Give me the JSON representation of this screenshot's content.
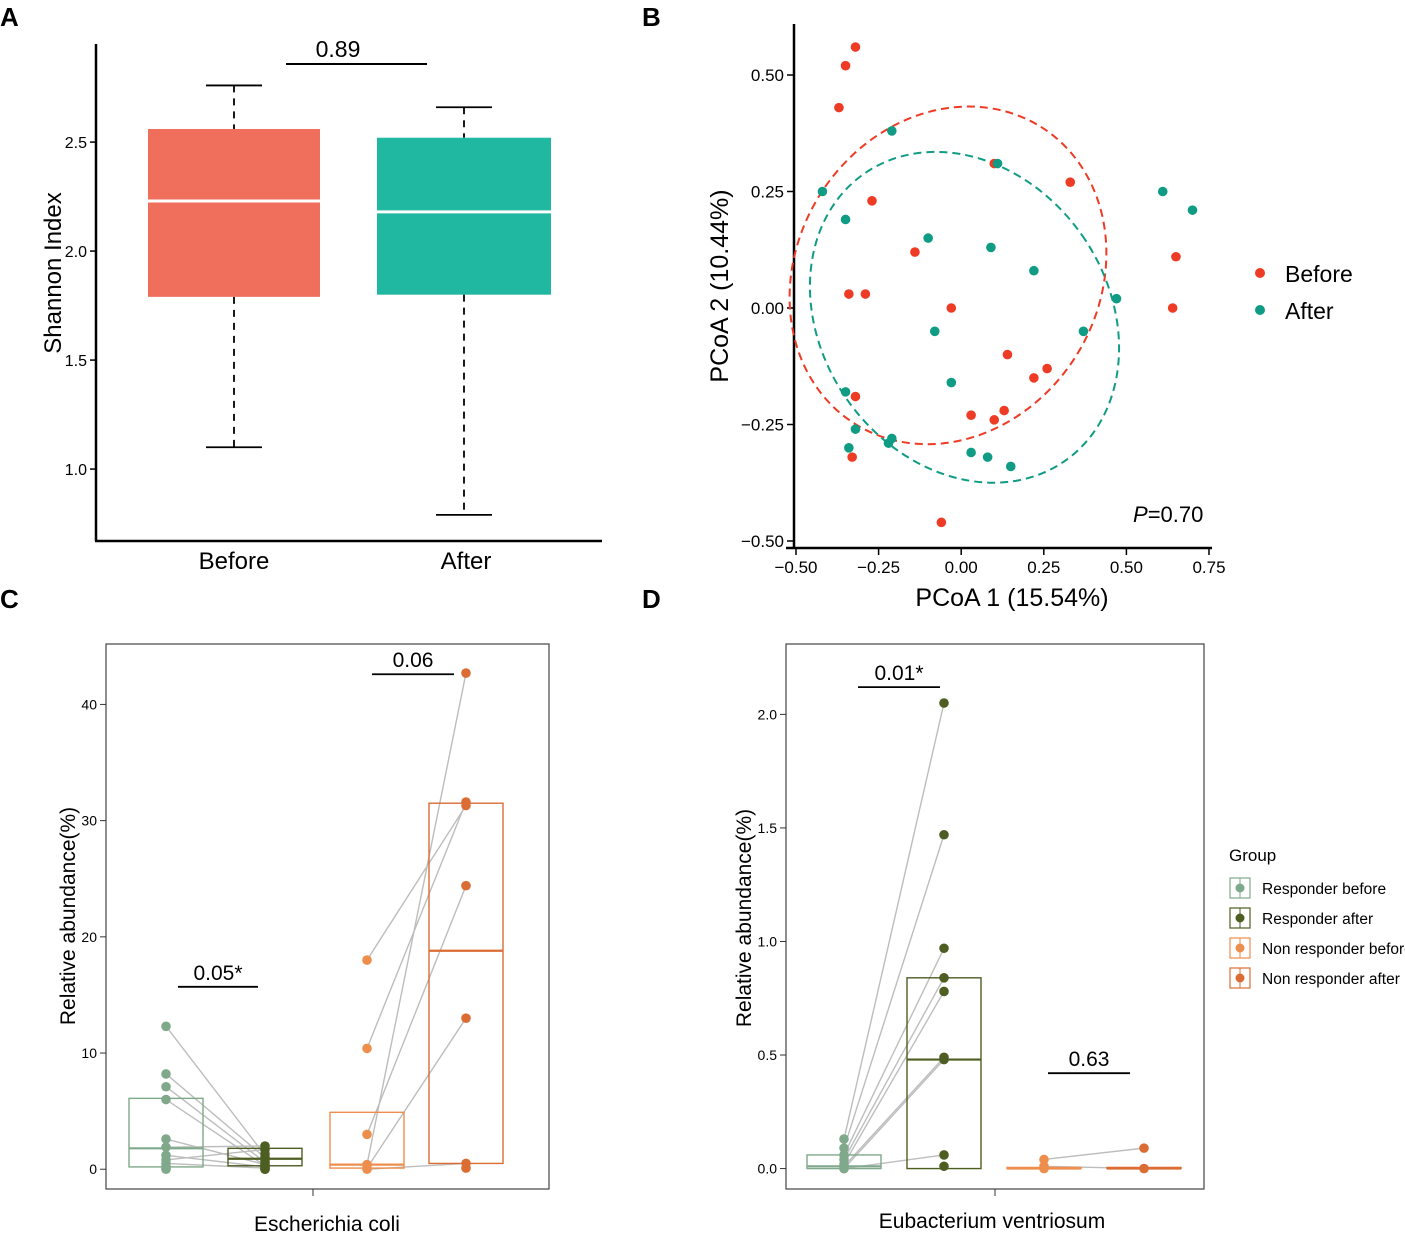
{
  "panel_labels": [
    "A",
    "B",
    "C",
    "D"
  ],
  "chart_data": [
    {
      "panel": "A",
      "type": "box",
      "title": "",
      "xlabel": "",
      "ylabel": "Shannon Index",
      "ylim": [
        0.67,
        2.95
      ],
      "yticks": [
        "1.0",
        "1.5",
        "2.0",
        "2.5"
      ],
      "ytick_values": [
        1.0,
        1.5,
        2.0,
        2.5
      ],
      "categories": [
        "Before",
        "After"
      ],
      "colors": [
        "#EF6F5C",
        "#20B8A0"
      ],
      "boxes": [
        {
          "name": "Before",
          "min": 1.1,
          "q1": 1.79,
          "median": 2.23,
          "q3": 2.56,
          "max": 2.76
        },
        {
          "name": "After",
          "min": 0.79,
          "q1": 1.8,
          "median": 2.18,
          "q3": 2.52,
          "max": 2.66
        }
      ],
      "comparisons": [
        {
          "from": 0,
          "to": 1,
          "label": "0.89",
          "y": 2.78
        }
      ]
    },
    {
      "panel": "B",
      "type": "scatter",
      "title": "",
      "xlabel": "PCoA 1 (15.54%)",
      "ylabel": "PCoA 2 (10.44%)",
      "xlim": [
        -0.5,
        0.75
      ],
      "ylim": [
        -0.5,
        0.6
      ],
      "xticks": [
        "−0.50",
        "−0.25",
        "0.00",
        "0.25",
        "0.50",
        "0.75"
      ],
      "xtick_values": [
        -0.5,
        -0.25,
        0.0,
        0.25,
        0.5,
        0.75
      ],
      "yticks": [
        "−0.50",
        "−0.25",
        "0.00",
        "0.25",
        "0.50"
      ],
      "ytick_values": [
        -0.5,
        -0.25,
        0.0,
        0.25,
        0.5
      ],
      "annotation_italic": "P",
      "annotation_rest": "=0.70",
      "legend_position": "right",
      "series": [
        {
          "name": "Before",
          "color": "#EE3B26",
          "points": [
            [
              -0.32,
              0.56
            ],
            [
              -0.35,
              0.52
            ],
            [
              -0.37,
              0.43
            ],
            [
              -0.27,
              0.23
            ],
            [
              0.1,
              0.31
            ],
            [
              0.33,
              0.27
            ],
            [
              -0.14,
              0.12
            ],
            [
              -0.34,
              0.03
            ],
            [
              -0.29,
              0.03
            ],
            [
              -0.03,
              0.0
            ],
            [
              0.65,
              0.11
            ],
            [
              0.64,
              0.0
            ],
            [
              0.14,
              -0.1
            ],
            [
              0.26,
              -0.13
            ],
            [
              0.22,
              -0.15
            ],
            [
              -0.32,
              -0.19
            ],
            [
              0.03,
              -0.23
            ],
            [
              0.1,
              -0.24
            ],
            [
              0.13,
              -0.22
            ],
            [
              -0.33,
              -0.32
            ],
            [
              -0.06,
              -0.46
            ]
          ]
        },
        {
          "name": "After",
          "color": "#109C84",
          "points": [
            [
              -0.21,
              0.38
            ],
            [
              -0.42,
              0.25
            ],
            [
              -0.35,
              0.19
            ],
            [
              0.11,
              0.31
            ],
            [
              0.61,
              0.25
            ],
            [
              0.7,
              0.21
            ],
            [
              -0.1,
              0.15
            ],
            [
              0.09,
              0.13
            ],
            [
              0.22,
              0.08
            ],
            [
              0.47,
              0.02
            ],
            [
              -0.08,
              -0.05
            ],
            [
              0.37,
              -0.05
            ],
            [
              -0.03,
              -0.16
            ],
            [
              -0.35,
              -0.18
            ],
            [
              -0.32,
              -0.26
            ],
            [
              -0.21,
              -0.28
            ],
            [
              -0.22,
              -0.29
            ],
            [
              -0.34,
              -0.3
            ],
            [
              0.03,
              -0.31
            ],
            [
              0.08,
              -0.32
            ],
            [
              0.15,
              -0.34
            ]
          ]
        }
      ],
      "ellipses": [
        {
          "group": "Before",
          "center": [
            -0.04,
            0.07
          ],
          "rx": 0.44,
          "ry": 0.38,
          "angle_deg": 58
        },
        {
          "group": "After",
          "center": [
            0.01,
            -0.02
          ],
          "rx": 0.36,
          "ry": 0.44,
          "angle_deg": 35
        }
      ]
    },
    {
      "panel": "C",
      "type": "box",
      "title": "",
      "xlabel": "Escherichia coli",
      "ylabel": "Relative abundance(%)",
      "ylim": [
        -1.7,
        45.2
      ],
      "yticks": [
        "0",
        "10",
        "20",
        "30",
        "40"
      ],
      "ytick_values": [
        0,
        10,
        20,
        30,
        40
      ],
      "groups": [
        "Responder before",
        "Responder after",
        "Non responder before",
        "Non responder after"
      ],
      "colors": [
        "#7FA98A",
        "#4E5E23",
        "#EE8E4C",
        "#DB6D34"
      ],
      "boxes": [
        {
          "group": 0,
          "q1": 0.2,
          "median": 1.8,
          "q3": 6.1,
          "points": [
            12.3,
            8.2,
            7.1,
            6.0,
            2.6,
            1.9,
            1.2,
            0.8,
            0.5,
            0.2,
            0.1,
            0.0
          ]
        },
        {
          "group": 1,
          "q1": 0.3,
          "median": 0.9,
          "q3": 1.8,
          "points": [
            2.0,
            1.7,
            1.3,
            1.0,
            0.8,
            0.6,
            0.4,
            0.3,
            0.2,
            0.1,
            0.0,
            0.0
          ]
        },
        {
          "group": 2,
          "q1": 0.1,
          "median": 0.4,
          "q3": 4.9,
          "points": [
            18.0,
            10.4,
            3.0,
            0.4,
            0.1,
            0.0
          ]
        },
        {
          "group": 3,
          "q1": 0.5,
          "median": 18.8,
          "q3": 31.5,
          "points": [
            42.7,
            31.6,
            31.3,
            24.4,
            13.0,
            0.5,
            0.1
          ]
        }
      ],
      "pairs": [
        [
          0,
          1
        ],
        [
          2,
          3
        ]
      ],
      "lines": [
        [
          12.3,
          1.2
        ],
        [
          8.2,
          1.0
        ],
        [
          7.1,
          0.6
        ],
        [
          6.0,
          0.3
        ],
        [
          2.6,
          0.4
        ],
        [
          1.9,
          2.0
        ],
        [
          1.2,
          0.2
        ],
        [
          0.8,
          1.7
        ],
        [
          0.5,
          0.1
        ],
        [
          18.0,
          31.3
        ],
        [
          10.4,
          31.6
        ],
        [
          3.0,
          24.4
        ],
        [
          0.4,
          42.7
        ],
        [
          0.1,
          13.0
        ],
        [
          0.0,
          0.5
        ]
      ],
      "comparisons": [
        {
          "from": 0,
          "to": 1,
          "label": "0.05*",
          "y": 15.7
        },
        {
          "from": 2,
          "to": 3,
          "label": "0.06",
          "y": 42.6
        }
      ]
    },
    {
      "panel": "D",
      "type": "box",
      "title": "",
      "xlabel": "Eubacterium ventriosum",
      "ylabel": "Relative abundance(%)",
      "ylim": [
        -0.09,
        2.31
      ],
      "yticks": [
        "0.0",
        "0.5",
        "1.0",
        "1.5",
        "2.0"
      ],
      "ytick_values": [
        0.0,
        0.5,
        1.0,
        1.5,
        2.0
      ],
      "groups": [
        "Responder before",
        "Responder after",
        "Non responder before",
        "Non responder after"
      ],
      "colors": [
        "#7FA98A",
        "#4E5E23",
        "#EE8E4C",
        "#DB6D34"
      ],
      "boxes": [
        {
          "group": 0,
          "q1": 0.0,
          "median": 0.01,
          "q3": 0.06,
          "points": [
            0.13,
            0.09,
            0.06,
            0.04,
            0.02,
            0.01,
            0.0,
            0.0
          ]
        },
        {
          "group": 1,
          "q1": 0.0,
          "median": 0.48,
          "q3": 0.84,
          "points": [
            2.05,
            1.47,
            0.97,
            0.84,
            0.78,
            0.49,
            0.48,
            0.06,
            0.01
          ]
        },
        {
          "group": 2,
          "q1": 0.0,
          "median": 0.0,
          "q3": 0.005,
          "points": [
            0.04,
            0.01,
            0.0
          ]
        },
        {
          "group": 3,
          "q1": 0.0,
          "median": 0.0,
          "q3": 0.005,
          "points": [
            0.09,
            0.0
          ]
        }
      ],
      "pairs": [
        [
          0,
          1
        ],
        [
          2,
          3
        ]
      ],
      "lines": [
        [
          0.13,
          2.05
        ],
        [
          0.09,
          1.47
        ],
        [
          0.06,
          0.97
        ],
        [
          0.04,
          0.84
        ],
        [
          0.02,
          0.78
        ],
        [
          0.01,
          0.49
        ],
        [
          0.0,
          0.48
        ],
        [
          0.0,
          0.06
        ],
        [
          0.04,
          0.09
        ],
        [
          0.01,
          0.0
        ]
      ],
      "comparisons": [
        {
          "from": 0,
          "to": 1,
          "label": "0.01*",
          "y": 2.12
        },
        {
          "from": 2,
          "to": 3,
          "label": "0.63",
          "y": 0.42
        }
      ],
      "legend": {
        "title": "Group",
        "entries": [
          "Responder before",
          "Responder after",
          "Non responder before",
          "Non responder after"
        ]
      }
    }
  ]
}
